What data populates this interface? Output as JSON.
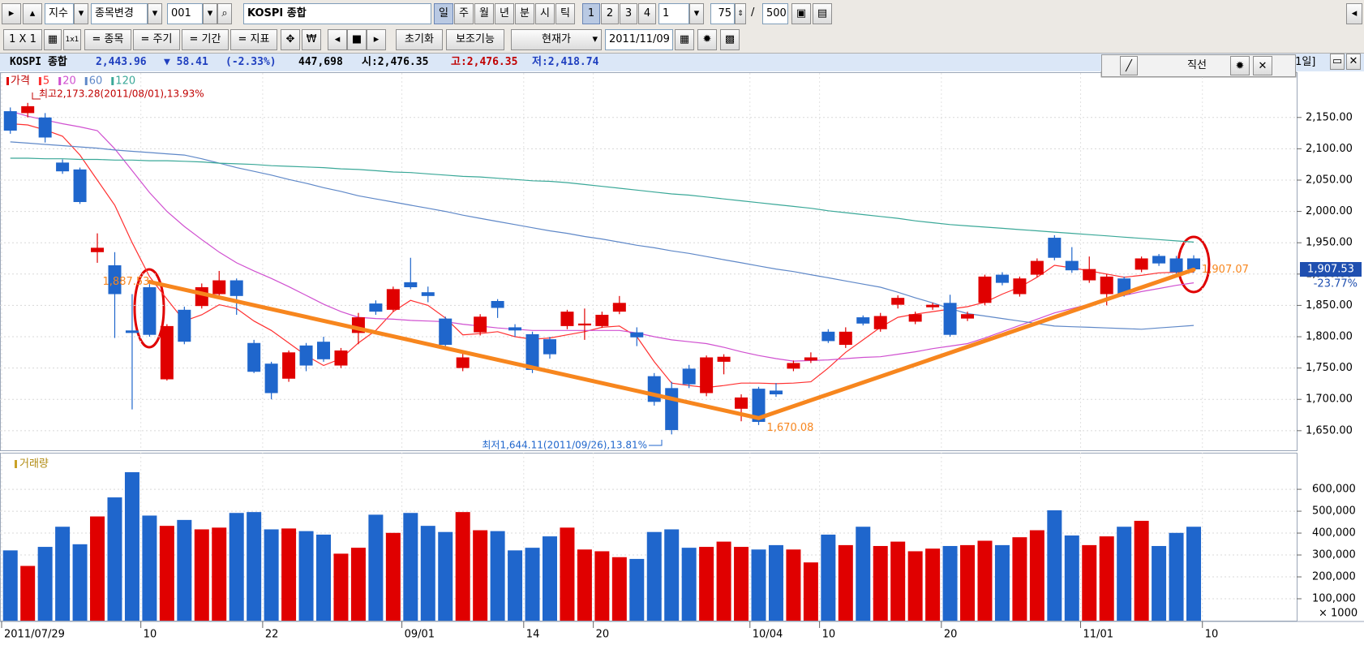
{
  "toolbar": {
    "row1": {
      "market": "지수",
      "change_symbol": "종목변경",
      "code": "001",
      "name": "KOSPI 종합",
      "periods": [
        "일",
        "주",
        "월",
        "년",
        "분",
        "시",
        "틱"
      ],
      "multiples": [
        "1",
        "2",
        "3",
        "4"
      ],
      "multiple_input": "1",
      "count": "75",
      "separator": "/",
      "max_count": "500"
    },
    "row2": {
      "layout": "1 X 1",
      "buttons": [
        "= 종목",
        "= 주기",
        "= 기간",
        "= 지표"
      ],
      "reset": "초기화",
      "aux": "보조기능",
      "price_mode": "현재가",
      "date": "2011/11/09"
    }
  },
  "info_bar": {
    "name": "KOSPI 종합",
    "price": "2,443.96",
    "change": "▼ 58.41",
    "change_pct": "(-2.33%)",
    "volume": "447,698",
    "open": "시:2,476.35",
    "high": "고:2,476.35",
    "low": "저:2,418.74",
    "period": "[1일]"
  },
  "drawing_tool": {
    "label": "직선"
  },
  "chart_data": [
    {
      "type": "candlestick",
      "up_color": "#e00000",
      "down_color": "#1f66cc",
      "grid": true,
      "categories": [
        "2011/07/29",
        null,
        null,
        null,
        null,
        null,
        null,
        null,
        "10",
        null,
        null,
        null,
        null,
        null,
        null,
        "22",
        null,
        null,
        null,
        null,
        null,
        null,
        null,
        "09/01",
        null,
        null,
        null,
        null,
        null,
        null,
        "14",
        null,
        null,
        null,
        "20",
        null,
        null,
        null,
        null,
        null,
        null,
        null,
        null,
        "10/04",
        null,
        null,
        null,
        "10",
        null,
        null,
        null,
        null,
        null,
        null,
        "20",
        null,
        null,
        null,
        null,
        null,
        null,
        null,
        "11/01",
        null,
        null,
        null,
        null,
        null,
        null,
        "10"
      ],
      "ylim": [
        1620,
        2208
      ],
      "yticks": [
        {
          "value": 1650,
          "label": "1,650.00"
        },
        {
          "value": 1700,
          "label": "1,700.00"
        },
        {
          "value": 1750,
          "label": "1,750.00"
        },
        {
          "value": 1800,
          "label": "1,800.00"
        },
        {
          "value": 1850,
          "label": "1,850.00"
        },
        {
          "value": 1900,
          "label": "1,900.00"
        },
        {
          "value": 1950,
          "label": "1,950.00"
        },
        {
          "value": 2000,
          "label": "2,000.00"
        },
        {
          "value": 2050,
          "label": "2,050.00"
        },
        {
          "value": 2100,
          "label": "2,100.00"
        },
        {
          "value": 2150,
          "label": "2,150.00"
        }
      ],
      "series": [
        {
          "name": "가격",
          "color": "#e00000",
          "open": [
            2160,
            2157,
            2150,
            2078,
            2067,
            1935,
            1914,
            1810,
            1879,
            1732,
            1843,
            1849,
            1868,
            1890,
            1790,
            1757,
            1733,
            1786,
            1792,
            1754,
            1806,
            1853,
            1843,
            1887,
            1871,
            1829,
            1750,
            1807,
            1857,
            1815,
            1804,
            1796,
            1817,
            1818,
            1817,
            1840,
            1807,
            1737,
            1718,
            1749,
            1710,
            1760,
            1685,
            1717,
            1714,
            1749,
            1762,
            1808,
            1787,
            1831,
            1812,
            1851,
            1824,
            1847,
            1854,
            1829,
            1854,
            1899,
            1868,
            1899,
            1958,
            1921,
            1890,
            1868,
            1893,
            1907,
            1929,
            1925,
            1925,
            null
          ],
          "high": [
            2166,
            2173.28,
            2157,
            2083,
            2070,
            1965,
            1935,
            1868,
            1884,
            1820,
            1848,
            1885,
            1905,
            1893,
            1795,
            1760,
            1778,
            1790,
            1800,
            1782,
            1838,
            1858,
            1880,
            1926,
            1880,
            1832,
            1775,
            1836,
            1860,
            1820,
            1808,
            1800,
            1843,
            1845,
            1840,
            1865,
            1815,
            1742,
            1728,
            1755,
            1770,
            1772,
            1708,
            1720,
            1726,
            1762,
            1775,
            1812,
            1815,
            1834,
            1838,
            1866,
            1840,
            1854,
            1867,
            1840,
            1899,
            1903,
            1896,
            1925,
            1962,
            1943,
            1928,
            1900,
            1896,
            1928,
            1932,
            1929,
            1930,
            null
          ],
          "low": [
            2124,
            2150,
            2110,
            2060,
            2012,
            1918,
            1798,
            1684,
            1800,
            1730,
            1788,
            1845,
            1862,
            1835,
            1742,
            1700,
            1728,
            1745,
            1760,
            1750,
            1788,
            1835,
            1840,
            1876,
            1855,
            1782,
            1745,
            1802,
            1830,
            1800,
            1742,
            1765,
            1812,
            1795,
            1814,
            1836,
            1785,
            1690,
            1644.11,
            1718,
            1705,
            1740,
            1665,
            1659,
            1704,
            1745,
            1758,
            1790,
            1782,
            1818,
            1808,
            1845,
            1820,
            1843,
            1800,
            1825,
            1850,
            1882,
            1864,
            1895,
            1922,
            1902,
            1886,
            1850,
            1864,
            1903,
            1913,
            1900,
            1902,
            null
          ],
          "close": [
            2129,
            2168,
            2118,
            2064,
            2015,
            1942,
            1868,
            1806,
            1803,
            1817,
            1792,
            1879,
            1890,
            1865,
            1744,
            1710,
            1775,
            1754,
            1764,
            1778,
            1831,
            1840,
            1876,
            1879,
            1865,
            1787,
            1767,
            1832,
            1846,
            1810,
            1747,
            1772,
            1840,
            1821,
            1835,
            1854,
            1799,
            1696,
            1651,
            1724,
            1767,
            1768,
            1703,
            1664,
            1708,
            1758,
            1767,
            1793,
            1808,
            1821,
            1833,
            1862,
            1836,
            1851,
            1803,
            1836,
            1896,
            1886,
            1893,
            1921,
            1926,
            1906,
            1908,
            1896,
            1868,
            1925,
            1917,
            1903,
            1907.53,
            null
          ]
        },
        {
          "name": "5",
          "color": "#ff3030",
          "values": [
            2140,
            2138,
            2130,
            2120,
            2090,
            2050,
            2010,
            1950,
            1896,
            1860,
            1825,
            1835,
            1851,
            1845,
            1825,
            1810,
            1790,
            1770,
            1754,
            1765,
            1790,
            1810,
            1840,
            1858,
            1850,
            1830,
            1803,
            1805,
            1808,
            1800,
            1796,
            1798,
            1803,
            1808,
            1815,
            1817,
            1800,
            1760,
            1726,
            1722,
            1719,
            1722,
            1726,
            1726,
            1725,
            1726,
            1728,
            1750,
            1775,
            1795,
            1815,
            1831,
            1836,
            1840,
            1844,
            1848,
            1855,
            1868,
            1879,
            1895,
            1914,
            1910,
            1905,
            1900,
            1895,
            1898,
            1902,
            1903,
            1903,
            null
          ]
        },
        {
          "name": "20",
          "color": "#d050d0",
          "values": [
            2160,
            2152,
            2146,
            2140,
            2135,
            2129,
            2100,
            2065,
            2030,
            2000,
            1976,
            1955,
            1935,
            1918,
            1905,
            1893,
            1880,
            1866,
            1852,
            1840,
            1831,
            1829,
            1828,
            1826,
            1825,
            1824,
            1820,
            1817,
            1814,
            1812,
            1810,
            1810,
            1810,
            1810,
            1810,
            1810,
            1806,
            1800,
            1795,
            1792,
            1789,
            1783,
            1776,
            1770,
            1765,
            1761,
            1762,
            1763,
            1765,
            1767,
            1768,
            1772,
            1776,
            1781,
            1785,
            1789,
            1798,
            1808,
            1818,
            1828,
            1838,
            1845,
            1852,
            1859,
            1866,
            1872,
            1877,
            1882,
            1886,
            null
          ]
        },
        {
          "name": "60",
          "color": "#5f88c8",
          "values": [
            2111,
            2109,
            2107,
            2105,
            2103,
            2101,
            2098,
            2096,
            2094,
            2092,
            2090,
            2084,
            2077,
            2070,
            2064,
            2058,
            2051,
            2045,
            2038,
            2032,
            2025,
            2020,
            2015,
            2010,
            2005,
            2000,
            1994,
            1989,
            1984,
            1979,
            1974,
            1969,
            1965,
            1960,
            1956,
            1951,
            1946,
            1942,
            1937,
            1933,
            1928,
            1923,
            1918,
            1913,
            1908,
            1904,
            1899,
            1894,
            1889,
            1884,
            1879,
            1871,
            1862,
            1854,
            1845,
            1837,
            1833,
            1829,
            1825,
            1821,
            1817,
            1816,
            1815,
            1814,
            1813,
            1812,
            1814,
            1816,
            1818,
            null
          ]
        },
        {
          "name": "120",
          "color": "#3aa898",
          "values": [
            2085,
            2085,
            2084,
            2084,
            2083,
            2083,
            2082,
            2082,
            2081,
            2081,
            2080,
            2079,
            2077,
            2076,
            2075,
            2073,
            2072,
            2071,
            2070,
            2068,
            2067,
            2065,
            2063,
            2062,
            2060,
            2058,
            2056,
            2055,
            2053,
            2051,
            2049,
            2048,
            2046,
            2043,
            2040,
            2037,
            2034,
            2031,
            2028,
            2026,
            2023,
            2020,
            2017,
            2014,
            2011,
            2008,
            2005,
            2001,
            1998,
            1995,
            1992,
            1989,
            1985,
            1982,
            1979,
            1977,
            1975,
            1973,
            1971,
            1969,
            1967,
            1965,
            1963,
            1961,
            1959,
            1957,
            1955,
            1953,
            1951,
            null
          ]
        }
      ],
      "trendline": {
        "color": "#f7861e",
        "points": [
          {
            "index": 8,
            "value": 1887.53,
            "label": "1,887.53"
          },
          {
            "index": 43,
            "value": 1670.08,
            "label": "1,670.08"
          },
          {
            "index": 68,
            "value": 1907.07,
            "label": "1,907.07"
          }
        ]
      },
      "high_annotation": "최고2,173.28(2011/08/01),13.93%",
      "low_annotation": "최저1,644.11(2011/09/26),13.81%",
      "last_price": {
        "value": 1907.53,
        "label": "1,907.53"
      },
      "last_change": "-23.77%"
    },
    {
      "type": "bar",
      "title": "거래량",
      "unit_label": "× 1000",
      "ylim": [
        0,
        730000
      ],
      "yticks": [
        {
          "value": 100000,
          "label": "100,000"
        },
        {
          "value": 200000,
          "label": "200,000"
        },
        {
          "value": 300000,
          "label": "300,000"
        },
        {
          "value": 400000,
          "label": "400,000"
        },
        {
          "value": 500000,
          "label": "500,000"
        },
        {
          "value": 600000,
          "label": "600,000"
        }
      ],
      "values": [
        321000,
        250000,
        337000,
        429000,
        349000,
        476000,
        563000,
        678000,
        480000,
        433000,
        460000,
        417000,
        425000,
        492000,
        496000,
        417000,
        421000,
        409000,
        393000,
        306000,
        333000,
        484000,
        401000,
        492000,
        433000,
        405000,
        496000,
        413000,
        409000,
        321000,
        333000,
        385000,
        425000,
        325000,
        317000,
        290000,
        282000,
        405000,
        417000,
        333000,
        337000,
        361000,
        337000,
        325000,
        345000,
        325000,
        266000,
        393000,
        345000,
        429000,
        341000,
        361000,
        317000,
        329000,
        341000,
        345000,
        365000,
        345000,
        381000,
        413000,
        504000,
        389000,
        345000,
        385000,
        429000,
        456000,
        341000,
        401000,
        429000,
        null
      ]
    }
  ]
}
